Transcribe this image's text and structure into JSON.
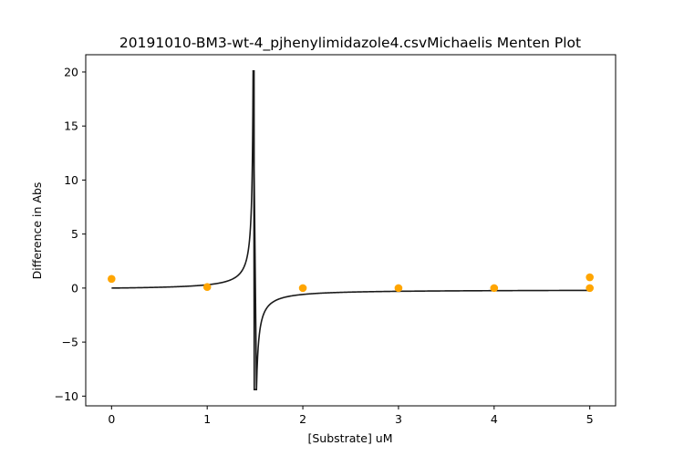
{
  "chart_data": {
    "type": "scatter",
    "title": "20191010-BM3-wt-4_pjhenylimidazole4.csvMichaelis Menten Plot",
    "xlabel": "[Substrate] uM",
    "ylabel": "Difference in Abs",
    "xlim": [
      -0.27,
      5.27
    ],
    "ylim": [
      -10.9,
      21.6
    ],
    "xticks": [
      0,
      1,
      2,
      3,
      4,
      5
    ],
    "yticks": [
      -10,
      -5,
      0,
      5,
      10,
      15,
      20
    ],
    "grid": false,
    "legend": "none",
    "series": [
      {
        "kind": "points",
        "color": "#ffa500",
        "x": [
          0,
          1,
          2,
          3,
          4,
          5,
          5
        ],
        "y": [
          0.85,
          0.1,
          0.0,
          0.0,
          0.0,
          1.0,
          0.0
        ]
      },
      {
        "kind": "fit-line",
        "color": "#1a1a1a",
        "x_range": [
          0,
          5
        ],
        "vmax": -0.15,
        "km": -1.4911
      }
    ]
  }
}
